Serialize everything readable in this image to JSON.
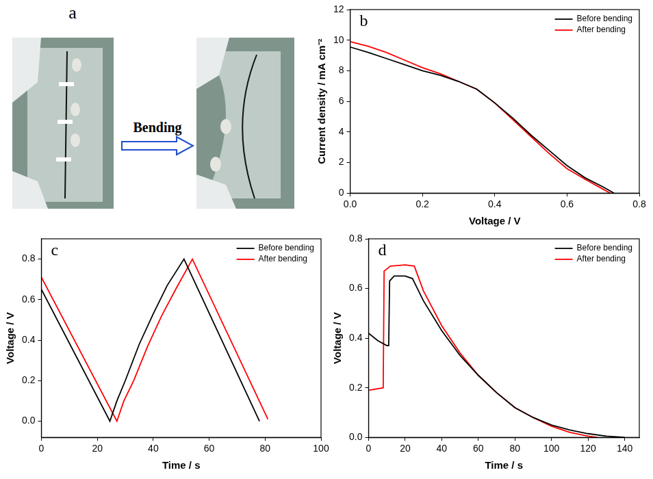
{
  "photo_panel": {
    "panel": "a",
    "arrow_label": "Bending"
  },
  "chart_data": [
    {
      "panel": "b",
      "type": "line",
      "x_label": "Voltage / V",
      "y_label": "Current density / mA cm⁻²",
      "xlim": [
        0,
        0.8
      ],
      "xticks": [
        {
          "value": 0,
          "label": "0.0"
        },
        {
          "value": 0.2,
          "label": "0.2"
        },
        {
          "value": 0.4,
          "label": "0.4"
        },
        {
          "value": 0.6,
          "label": "0.6"
        },
        {
          "value": 0.8,
          "label": "0.8"
        }
      ],
      "ylim": [
        0,
        12
      ],
      "yticks": [
        0,
        2,
        4,
        6,
        8,
        10,
        12
      ],
      "grid": false,
      "legend": "upper right",
      "series": [
        {
          "name": "Before bending",
          "color": "#000000",
          "marker": "none",
          "line_style": "solid",
          "x": [
            0,
            0.05,
            0.1,
            0.15,
            0.2,
            0.25,
            0.3,
            0.35,
            0.4,
            0.45,
            0.5,
            0.55,
            0.6,
            0.65,
            0.7,
            0.73
          ],
          "values": [
            9.55,
            9.2,
            8.8,
            8.4,
            8.0,
            7.7,
            7.3,
            6.8,
            5.9,
            4.9,
            3.8,
            2.8,
            1.8,
            1.0,
            0.4,
            0
          ]
        },
        {
          "name": "After bending",
          "color": "#ff0000",
          "marker": "none",
          "line_style": "solid",
          "x": [
            0,
            0.05,
            0.1,
            0.15,
            0.2,
            0.25,
            0.3,
            0.35,
            0.4,
            0.45,
            0.5,
            0.55,
            0.6,
            0.65,
            0.7,
            0.72
          ],
          "values": [
            9.9,
            9.6,
            9.2,
            8.7,
            8.2,
            7.8,
            7.3,
            6.8,
            5.9,
            4.8,
            3.7,
            2.6,
            1.6,
            0.9,
            0.25,
            0
          ]
        }
      ]
    },
    {
      "panel": "c",
      "type": "line",
      "x_label": "Time / s",
      "y_label": "Voltage / V",
      "xlim": [
        0,
        100
      ],
      "xticks": [
        0,
        20,
        40,
        60,
        80,
        100
      ],
      "ylim": [
        -0.08,
        0.9
      ],
      "yticks": [
        {
          "value": 0,
          "label": "0.0"
        },
        {
          "value": 0.2,
          "label": "0.2"
        },
        {
          "value": 0.4,
          "label": "0.4"
        },
        {
          "value": 0.6,
          "label": "0.6"
        },
        {
          "value": 0.8,
          "label": "0.8"
        }
      ],
      "grid": false,
      "legend": "upper right",
      "series": [
        {
          "name": "Before bending",
          "color": "#000000",
          "marker": "none",
          "line_style": "solid",
          "x": [
            0,
            24.5,
            27,
            30,
            35,
            40,
            45,
            51,
            78
          ],
          "values": [
            0.65,
            0,
            0.1,
            0.2,
            0.38,
            0.53,
            0.67,
            0.8,
            0
          ]
        },
        {
          "name": "After bending",
          "color": "#ff0000",
          "marker": "none",
          "line_style": "solid",
          "x": [
            0,
            27,
            29.5,
            33,
            38,
            43,
            48,
            54,
            81
          ],
          "values": [
            0.71,
            0,
            0.1,
            0.2,
            0.37,
            0.52,
            0.65,
            0.8,
            0.01
          ]
        }
      ]
    },
    {
      "panel": "d",
      "type": "line",
      "x_label": "Time / s",
      "y_label": "Voltage / V",
      "xlim": [
        0,
        148
      ],
      "xticks": [
        0,
        20,
        40,
        60,
        80,
        100,
        120,
        140
      ],
      "ylim": [
        0,
        0.8
      ],
      "yticks": [
        {
          "value": 0,
          "label": "0.0"
        },
        {
          "value": 0.2,
          "label": "0.2"
        },
        {
          "value": 0.4,
          "label": "0.4"
        },
        {
          "value": 0.6,
          "label": "0.6"
        },
        {
          "value": 0.8,
          "label": "0.8"
        }
      ],
      "grid": false,
      "legend": "upper right",
      "series": [
        {
          "name": "Before bending",
          "color": "#000000",
          "marker": "none",
          "line_style": "solid",
          "x": [
            0,
            5,
            10,
            11,
            11.5,
            14,
            20,
            24,
            26,
            30,
            40,
            50,
            60,
            70,
            80,
            90,
            100,
            110,
            120,
            130,
            140
          ],
          "values": [
            0.42,
            0.39,
            0.37,
            0.37,
            0.63,
            0.65,
            0.65,
            0.64,
            0.61,
            0.55,
            0.43,
            0.33,
            0.25,
            0.18,
            0.12,
            0.08,
            0.05,
            0.03,
            0.015,
            0.005,
            0
          ]
        },
        {
          "name": "After bending",
          "color": "#ff0000",
          "marker": "none",
          "line_style": "solid",
          "x": [
            0,
            8,
            8.5,
            12,
            20,
            25,
            27,
            30,
            40,
            50,
            60,
            70,
            80,
            90,
            100,
            110,
            120,
            125
          ],
          "values": [
            0.19,
            0.2,
            0.67,
            0.69,
            0.695,
            0.69,
            0.65,
            0.59,
            0.45,
            0.34,
            0.25,
            0.18,
            0.12,
            0.08,
            0.045,
            0.02,
            0.005,
            0
          ]
        }
      ]
    }
  ]
}
